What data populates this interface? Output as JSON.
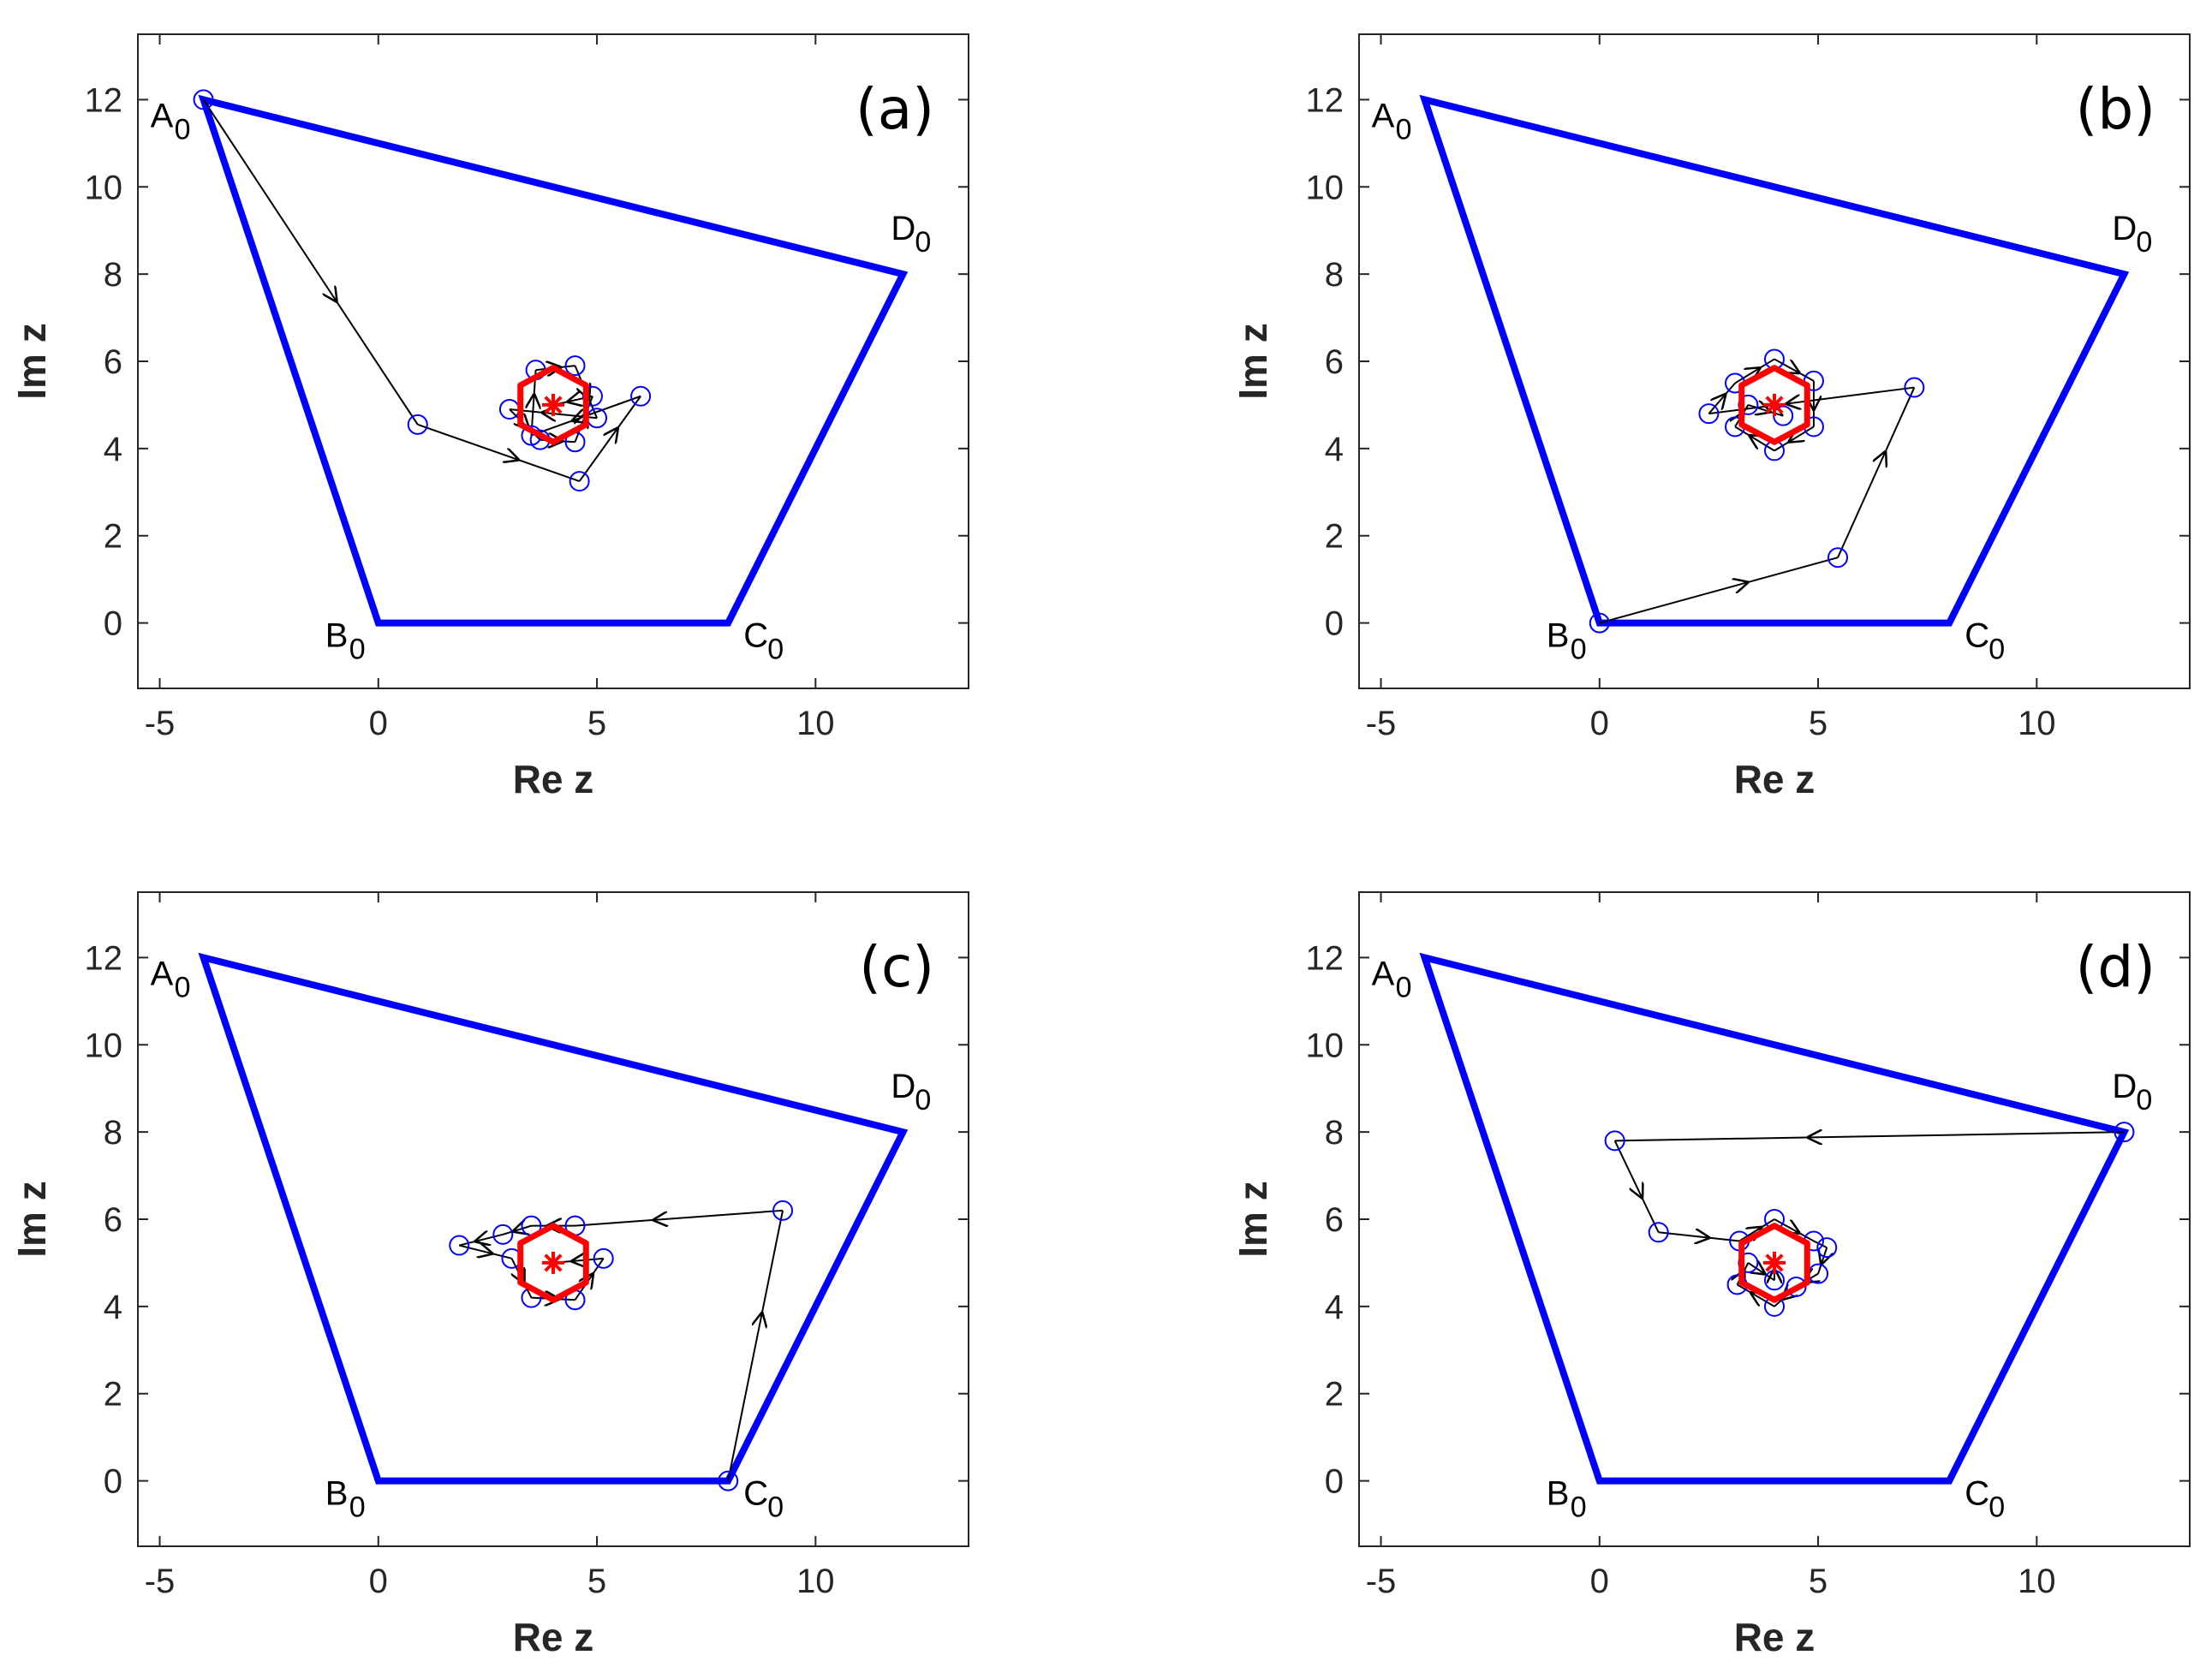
{
  "figure": {
    "quadrilateral_color": "#0000ff",
    "trajectory_color": "#000000",
    "marker_color": "#0000ff",
    "limit_cycle_color": "#ff0000",
    "center_marker_color": "#ff0000"
  },
  "chart_data": [
    {
      "type": "line",
      "panel_label": "(a)",
      "xlabel": "Re z",
      "ylabel": "Im z",
      "xlim": [
        -5.5,
        13.5
      ],
      "ylim": [
        -1.5,
        13.5
      ],
      "xticks": [
        -5,
        0,
        5,
        10
      ],
      "yticks": [
        0,
        2,
        4,
        6,
        8,
        10,
        12
      ],
      "vertices": [
        {
          "name": "A",
          "sub": "0",
          "x": -4,
          "y": 12
        },
        {
          "name": "B",
          "sub": "0",
          "x": 0,
          "y": 0
        },
        {
          "name": "C",
          "sub": "0",
          "x": 8,
          "y": 0
        },
        {
          "name": "D",
          "sub": "0",
          "x": 12,
          "y": 8
        }
      ],
      "center": [
        4,
        5
      ],
      "trajectory": [
        [
          -4,
          12
        ],
        [
          0.9,
          4.55
        ],
        [
          4.6,
          3.25
        ],
        [
          6.0,
          5.2
        ],
        [
          3.5,
          4.3
        ],
        [
          3.6,
          5.8
        ],
        [
          4.5,
          5.9
        ],
        [
          5.0,
          4.7
        ],
        [
          3.0,
          4.9
        ],
        [
          3.7,
          4.2
        ],
        [
          4.5,
          4.15
        ],
        [
          4.9,
          5.2
        ],
        [
          4.0,
          5.0
        ]
      ],
      "limit_cycle": [
        [
          4.0,
          5.85
        ],
        [
          4.75,
          5.45
        ],
        [
          4.75,
          4.55
        ],
        [
          4.0,
          4.15
        ],
        [
          3.25,
          4.55
        ],
        [
          3.25,
          5.45
        ]
      ]
    },
    {
      "type": "line",
      "panel_label": "(b)",
      "xlabel": "Re z",
      "ylabel": "Im z",
      "xlim": [
        -5.5,
        13.5
      ],
      "ylim": [
        -1.5,
        13.5
      ],
      "xticks": [
        -5,
        0,
        5,
        10
      ],
      "yticks": [
        0,
        2,
        4,
        6,
        8,
        10,
        12
      ],
      "vertices": [
        {
          "name": "A",
          "sub": "0",
          "x": -4,
          "y": 12
        },
        {
          "name": "B",
          "sub": "0",
          "x": 0,
          "y": 0
        },
        {
          "name": "C",
          "sub": "0",
          "x": 8,
          "y": 0
        },
        {
          "name": "D",
          "sub": "0",
          "x": 12,
          "y": 8
        }
      ],
      "center": [
        4,
        5
      ],
      "trajectory": [
        [
          0,
          0
        ],
        [
          5.45,
          1.5
        ],
        [
          7.2,
          5.4
        ],
        [
          2.5,
          4.8
        ],
        [
          3.1,
          5.5
        ],
        [
          4.0,
          6.05
        ],
        [
          4.9,
          5.55
        ],
        [
          4.9,
          4.5
        ],
        [
          4.0,
          3.95
        ],
        [
          3.1,
          4.5
        ],
        [
          3.4,
          5.0
        ],
        [
          4.2,
          4.75
        ],
        [
          4.0,
          5.0
        ]
      ],
      "limit_cycle": [
        [
          4.0,
          5.85
        ],
        [
          4.75,
          5.45
        ],
        [
          4.75,
          4.55
        ],
        [
          4.0,
          4.15
        ],
        [
          3.25,
          4.55
        ],
        [
          3.25,
          5.45
        ]
      ]
    },
    {
      "type": "line",
      "panel_label": "(c)",
      "xlabel": "Re z",
      "ylabel": "Im z",
      "xlim": [
        -5.5,
        13.5
      ],
      "ylim": [
        -1.5,
        13.5
      ],
      "xticks": [
        -5,
        0,
        5,
        10
      ],
      "yticks": [
        0,
        2,
        4,
        6,
        8,
        10,
        12
      ],
      "vertices": [
        {
          "name": "A",
          "sub": "0",
          "x": -4,
          "y": 12
        },
        {
          "name": "B",
          "sub": "0",
          "x": 0,
          "y": 0
        },
        {
          "name": "C",
          "sub": "0",
          "x": 8,
          "y": 0
        },
        {
          "name": "D",
          "sub": "0",
          "x": 12,
          "y": 8
        }
      ],
      "center": [
        4,
        5
      ],
      "trajectory": [
        [
          8,
          0
        ],
        [
          9.25,
          6.2
        ],
        [
          4.5,
          5.85
        ],
        [
          3.5,
          5.85
        ],
        [
          2.85,
          5.65
        ],
        [
          1.85,
          5.4
        ],
        [
          3.05,
          5.1
        ],
        [
          3.5,
          4.2
        ],
        [
          4.5,
          4.15
        ],
        [
          5.15,
          5.1
        ],
        [
          4.0,
          5.0
        ]
      ],
      "limit_cycle": [
        [
          4.0,
          5.85
        ],
        [
          4.75,
          5.45
        ],
        [
          4.75,
          4.55
        ],
        [
          4.0,
          4.15
        ],
        [
          3.25,
          4.55
        ],
        [
          3.25,
          5.45
        ]
      ]
    },
    {
      "type": "line",
      "panel_label": "(d)",
      "xlabel": "Re z",
      "ylabel": "Im z",
      "xlim": [
        -5.5,
        13.5
      ],
      "ylim": [
        -1.5,
        13.5
      ],
      "xticks": [
        -5,
        0,
        5,
        10
      ],
      "yticks": [
        0,
        2,
        4,
        6,
        8,
        10,
        12
      ],
      "vertices": [
        {
          "name": "A",
          "sub": "0",
          "x": -4,
          "y": 12
        },
        {
          "name": "B",
          "sub": "0",
          "x": 0,
          "y": 0
        },
        {
          "name": "C",
          "sub": "0",
          "x": 8,
          "y": 0
        },
        {
          "name": "D",
          "sub": "0",
          "x": 12,
          "y": 8
        }
      ],
      "center": [
        4,
        5
      ],
      "trajectory": [
        [
          12,
          8
        ],
        [
          0.35,
          7.8
        ],
        [
          1.35,
          5.7
        ],
        [
          3.2,
          5.5
        ],
        [
          4.0,
          6.0
        ],
        [
          4.9,
          5.5
        ],
        [
          5.2,
          5.35
        ],
        [
          5.0,
          4.75
        ],
        [
          4.5,
          4.45
        ],
        [
          4.0,
          4.0
        ],
        [
          3.15,
          4.5
        ],
        [
          3.4,
          5.0
        ],
        [
          4.0,
          4.6
        ],
        [
          4.0,
          5.0
        ]
      ],
      "limit_cycle": [
        [
          4.0,
          5.85
        ],
        [
          4.75,
          5.45
        ],
        [
          4.75,
          4.55
        ],
        [
          4.0,
          4.15
        ],
        [
          3.25,
          4.55
        ],
        [
          3.25,
          5.45
        ]
      ]
    }
  ]
}
